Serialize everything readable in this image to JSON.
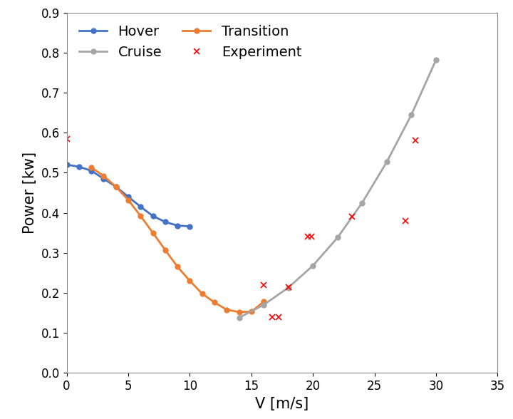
{
  "chart_data": {
    "type": "line",
    "x_label": "V [m/s]",
    "y_label": "Power [kw]",
    "xlim": [
      0,
      35
    ],
    "xticks": [
      0,
      5,
      10,
      15,
      20,
      25,
      30,
      35
    ],
    "ylim": [
      0.0,
      0.9
    ],
    "yticks": [
      0.0,
      0.1,
      0.2,
      0.3,
      0.4,
      0.5,
      0.6,
      0.7,
      0.8,
      0.9
    ],
    "grid": false,
    "legend": "upper left",
    "series": [
      {
        "name": "Hover",
        "type": "line",
        "color": "#4472c4",
        "marker": "circle",
        "line_style": "solid",
        "x": [
          0,
          1,
          2,
          3,
          4,
          5,
          6,
          7,
          8,
          9,
          10
        ],
        "values": [
          0.52,
          0.515,
          0.505,
          0.485,
          0.465,
          0.44,
          0.415,
          0.392,
          0.377,
          0.368,
          0.366
        ]
      },
      {
        "name": "Transition",
        "type": "line",
        "color": "#ed7d31",
        "marker": "circle",
        "line_style": "solid",
        "x": [
          2,
          3,
          4,
          5,
          6,
          7,
          8,
          9,
          10,
          11,
          12,
          13,
          14,
          15,
          16
        ],
        "values": [
          0.513,
          0.492,
          0.465,
          0.432,
          0.392,
          0.35,
          0.307,
          0.265,
          0.23,
          0.198,
          0.176,
          0.158,
          0.152,
          0.153,
          0.178
        ]
      },
      {
        "name": "Cruise",
        "type": "line",
        "color": "#a5a5a5",
        "marker": "circle",
        "line_style": "solid",
        "x": [
          14,
          16,
          18,
          20,
          22,
          24,
          26,
          28,
          30
        ],
        "values": [
          0.138,
          0.17,
          0.213,
          0.268,
          0.338,
          0.425,
          0.527,
          0.645,
          0.782
        ]
      },
      {
        "name": "Experiment",
        "type": "scatter",
        "color": "#ff0000",
        "marker": "x",
        "line_style": "none",
        "x": [
          0,
          16,
          16.7,
          17.2,
          18,
          19.6,
          19.9,
          23.2,
          27.5,
          28.3
        ],
        "values": [
          0.585,
          0.22,
          0.14,
          0.14,
          0.215,
          0.34,
          0.34,
          0.39,
          0.38,
          0.58
        ]
      }
    ]
  }
}
